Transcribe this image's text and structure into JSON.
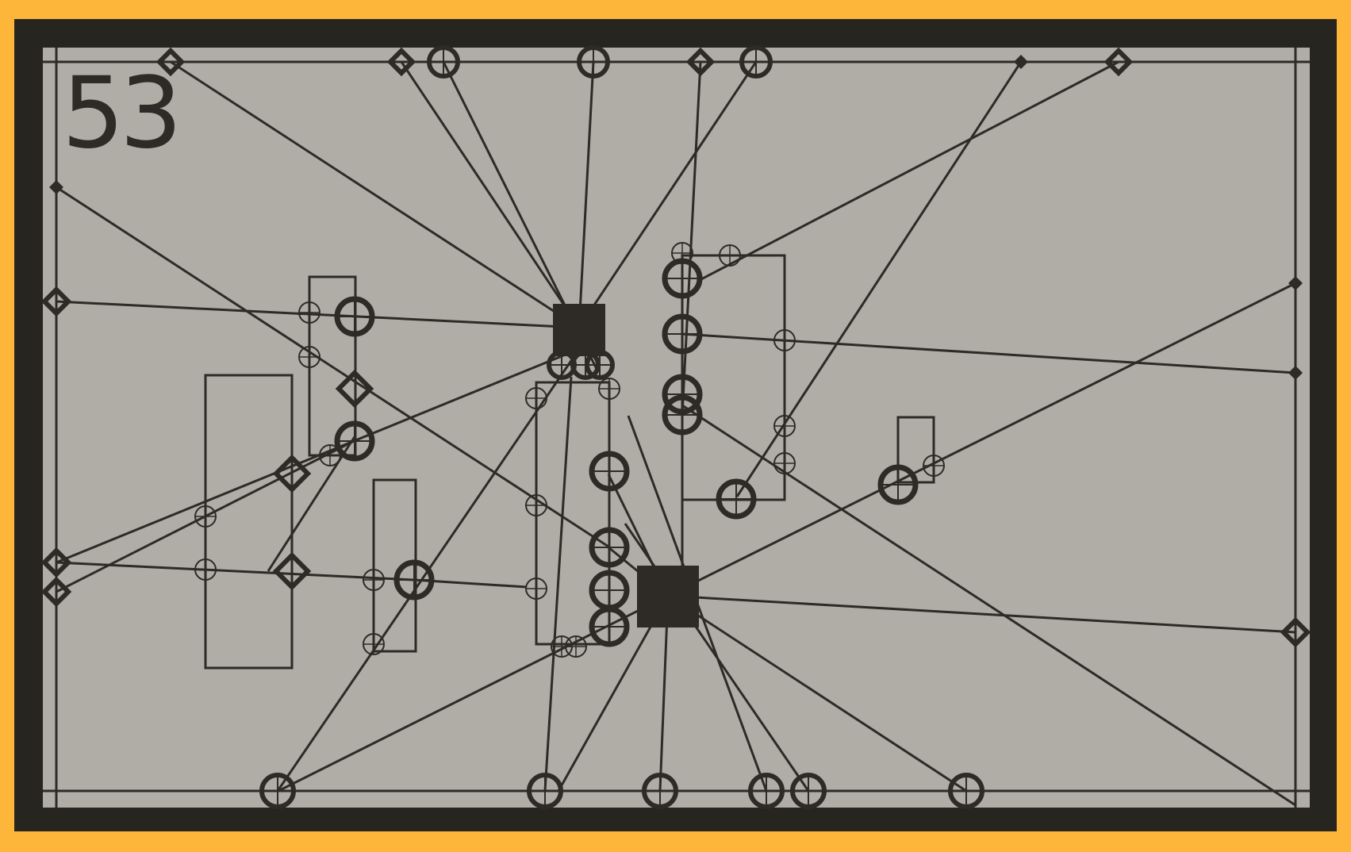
{
  "game": {
    "level_number": "53"
  },
  "colors": {
    "outer_frame": "#FDB63A",
    "border": "#272520",
    "board": "#AFADA5",
    "ink": "#2E2B27"
  },
  "icons": {
    "hub": "square-hub-icon",
    "node_large": "ring-node-icon",
    "node_diamond": "diamond-node-icon",
    "node_small": "small-ring-node-icon",
    "node_dot": "dot-node-icon"
  }
}
